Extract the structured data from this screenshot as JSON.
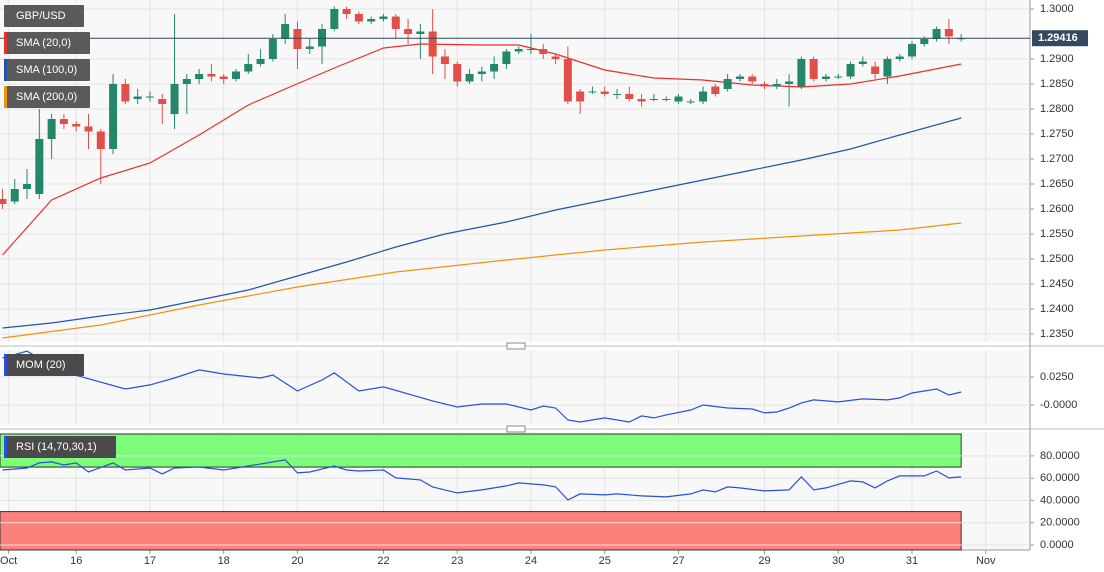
{
  "chart_data": [
    {
      "type": "candlestick",
      "title": "GBP/USD",
      "open": [
        1.262,
        1.2615,
        1.264,
        1.263,
        1.274,
        1.278,
        1.277,
        1.2765,
        1.2755,
        1.272,
        1.285,
        1.282,
        1.2825,
        1.282,
        1.279,
        1.285,
        1.286,
        1.287,
        1.2865,
        1.286,
        1.2875,
        1.289,
        1.29,
        1.294,
        1.296,
        1.292,
        1.2925,
        1.296,
        1.3,
        1.299,
        1.2975,
        1.298,
        1.2985,
        1.296,
        1.295,
        1.2955,
        1.2905,
        1.289,
        1.2855,
        1.287,
        1.2875,
        1.289,
        1.2915,
        1.292,
        1.292,
        1.2905,
        1.29,
        1.2835,
        1.2835,
        1.2835,
        1.283,
        1.283,
        1.282,
        1.282,
        1.282,
        1.2815,
        1.2815,
        1.2815,
        1.2845,
        1.284,
        1.286,
        1.2865,
        1.285,
        1.2845,
        1.285,
        1.2845,
        1.29,
        1.286,
        1.2865,
        1.2865,
        1.289,
        1.2885,
        1.2865,
        1.29,
        1.2905,
        1.293,
        1.294,
        1.296,
        1.294
      ],
      "high": [
        1.264,
        1.266,
        1.268,
        1.28,
        1.279,
        1.279,
        1.2775,
        1.279,
        1.276,
        1.287,
        1.286,
        1.284,
        1.2835,
        1.283,
        1.299,
        1.287,
        1.288,
        1.289,
        1.287,
        1.288,
        1.291,
        1.292,
        1.295,
        1.299,
        1.2975,
        1.294,
        1.297,
        1.3005,
        1.3005,
        1.2995,
        1.2985,
        1.299,
        1.299,
        1.298,
        1.297,
        1.3,
        1.292,
        1.2895,
        1.288,
        1.2885,
        1.2905,
        1.292,
        1.2925,
        1.295,
        1.293,
        1.291,
        1.2925,
        1.284,
        1.2845,
        1.2845,
        1.284,
        1.2845,
        1.283,
        1.283,
        1.2825,
        1.283,
        1.282,
        1.2845,
        1.285,
        1.287,
        1.287,
        1.287,
        1.2855,
        1.286,
        1.287,
        1.2905,
        1.2905,
        1.287,
        1.287,
        1.2895,
        1.2905,
        1.2895,
        1.2905,
        1.291,
        1.2935,
        1.2945,
        1.2965,
        1.298,
        1.295
      ],
      "low": [
        1.26,
        1.261,
        1.262,
        1.262,
        1.27,
        1.276,
        1.2755,
        1.272,
        1.265,
        1.271,
        1.281,
        1.281,
        1.2815,
        1.277,
        1.276,
        1.279,
        1.285,
        1.2855,
        1.285,
        1.2855,
        1.287,
        1.2885,
        1.2895,
        1.293,
        1.288,
        1.291,
        1.289,
        1.2955,
        1.298,
        1.297,
        1.297,
        1.2975,
        1.294,
        1.293,
        1.29,
        1.287,
        1.286,
        1.2845,
        1.285,
        1.2855,
        1.286,
        1.288,
        1.291,
        1.291,
        1.29,
        1.289,
        1.281,
        1.279,
        1.283,
        1.2825,
        1.282,
        1.2815,
        1.2805,
        1.2815,
        1.2815,
        1.281,
        1.281,
        1.281,
        1.2825,
        1.2835,
        1.2855,
        1.285,
        1.284,
        1.284,
        1.2805,
        1.284,
        1.2855,
        1.2855,
        1.286,
        1.286,
        1.2885,
        1.286,
        1.285,
        1.2895,
        1.29,
        1.2925,
        1.2935,
        1.293,
        1.2935
      ],
      "close": [
        1.261,
        1.264,
        1.265,
        1.274,
        1.278,
        1.277,
        1.2765,
        1.2755,
        1.272,
        1.285,
        1.2815,
        1.2825,
        1.2825,
        1.281,
        1.285,
        1.286,
        1.287,
        1.2865,
        1.286,
        1.2875,
        1.289,
        1.29,
        1.294,
        1.297,
        1.292,
        1.2925,
        1.296,
        1.3,
        1.299,
        1.2975,
        1.298,
        1.2985,
        1.296,
        1.295,
        1.2955,
        1.2905,
        1.289,
        1.2855,
        1.287,
        1.2875,
        1.289,
        1.2915,
        1.292,
        1.292,
        1.291,
        1.29,
        1.2815,
        1.2815,
        1.2835,
        1.283,
        1.283,
        1.282,
        1.2815,
        1.282,
        1.282,
        1.2825,
        1.2815,
        1.2835,
        1.283,
        1.286,
        1.2865,
        1.2855,
        1.2845,
        1.285,
        1.2855,
        1.29,
        1.286,
        1.2865,
        1.2865,
        1.289,
        1.2895,
        1.287,
        1.29,
        1.2905,
        1.293,
        1.294,
        1.296,
        1.2945,
        1.29416
      ],
      "up_color": "#25876a",
      "down_color": "#e04f48",
      "last_price": 1.29416,
      "series": [
        {
          "name": "SMA (20,0)",
          "color": "#e8302a",
          "x": [
            0,
            4,
            8,
            12,
            16,
            20,
            23,
            27,
            31,
            34,
            39,
            42,
            45,
            49,
            53,
            57,
            61,
            65,
            69,
            73,
            78
          ],
          "values": [
            1.2508,
            1.2618,
            1.2662,
            1.2692,
            1.2748,
            1.2808,
            1.284,
            1.2882,
            1.2922,
            1.293,
            1.2928,
            1.2928,
            1.291,
            1.2878,
            1.2862,
            1.2858,
            1.2848,
            1.2844,
            1.285,
            1.2866,
            1.289
          ]
        },
        {
          "name": "SMA (100,0)",
          "color": "#2255aa",
          "x": [
            0,
            4,
            8,
            12,
            16,
            20,
            24,
            28,
            32,
            36,
            41,
            45,
            49,
            53,
            57,
            61,
            65,
            69,
            73,
            78
          ],
          "values": [
            1.2362,
            1.2372,
            1.2386,
            1.2398,
            1.2418,
            1.2438,
            1.2466,
            1.2494,
            1.2524,
            1.255,
            1.2574,
            1.2598,
            1.2618,
            1.2638,
            1.2658,
            1.2678,
            1.2698,
            1.272,
            1.2748,
            1.2782
          ]
        },
        {
          "name": "SMA (200,0)",
          "color": "#f0930f",
          "x": [
            0,
            8,
            16,
            24,
            32,
            41,
            49,
            57,
            65,
            73,
            78
          ],
          "values": [
            1.2342,
            1.2368,
            1.2408,
            1.2444,
            1.2474,
            1.2498,
            1.2518,
            1.2534,
            1.2546,
            1.2558,
            1.2572
          ]
        }
      ],
      "xlim": [
        -0.2,
        83.6
      ],
      "xticks": [
        {
          "value": 0.5,
          "label": "Oct"
        },
        {
          "value": 6,
          "label": "16"
        },
        {
          "value": 12,
          "label": "17"
        },
        {
          "value": 18,
          "label": "18"
        },
        {
          "value": 24,
          "label": "20"
        },
        {
          "value": 31,
          "label": "22"
        },
        {
          "value": 37,
          "label": "23"
        },
        {
          "value": 43,
          "label": "24"
        },
        {
          "value": 49,
          "label": "25"
        },
        {
          "value": 55,
          "label": "27"
        },
        {
          "value": 62,
          "label": "29"
        },
        {
          "value": 68,
          "label": "30"
        },
        {
          "value": 74,
          "label": "31"
        },
        {
          "value": 80,
          "label": "Nov"
        }
      ],
      "ylim": [
        1.2334,
        1.3018
      ],
      "yticks": [
        {
          "value": 1.3,
          "label": "1.3000"
        },
        {
          "value": 1.29,
          "label": "1.2900"
        },
        {
          "value": 1.285,
          "label": "1.2850"
        },
        {
          "value": 1.28,
          "label": "1.2800"
        },
        {
          "value": 1.275,
          "label": "1.2750"
        },
        {
          "value": 1.27,
          "label": "1.2700"
        },
        {
          "value": 1.265,
          "label": "1.2650"
        },
        {
          "value": 1.26,
          "label": "1.2600"
        },
        {
          "value": 1.255,
          "label": "1.2550"
        },
        {
          "value": 1.25,
          "label": "1.2500"
        },
        {
          "value": 1.245,
          "label": "1.2450"
        },
        {
          "value": 1.24,
          "label": "1.2400"
        },
        {
          "value": 1.235,
          "label": "1.2350"
        }
      ],
      "grid": true
    },
    {
      "type": "line",
      "title": "MOM (20)",
      "color": "#2b4fd8",
      "x": [
        0,
        2,
        5,
        10,
        12,
        14,
        16,
        18,
        21,
        22,
        24,
        26,
        27,
        29,
        31,
        35,
        37,
        39,
        41,
        43,
        44,
        45,
        46,
        47,
        49,
        51,
        52,
        53,
        54,
        56,
        57,
        59,
        61,
        62,
        63,
        64,
        65,
        66,
        68,
        70,
        72,
        73,
        74,
        76,
        77,
        78
      ],
      "values": [
        0.042,
        0.048,
        0.0295,
        0.0143,
        0.0179,
        0.0241,
        0.0313,
        0.0277,
        0.0241,
        0.0268,
        0.0125,
        0.0223,
        0.0286,
        0.0125,
        0.0161,
        0.0036,
        -0.0018,
        0.0009,
        0.0009,
        -0.0045,
        -0.0009,
        -0.0027,
        -0.0134,
        -0.0152,
        -0.0116,
        -0.0152,
        -0.0098,
        -0.0116,
        -0.0089,
        -0.0045,
        0.0,
        -0.0027,
        -0.0036,
        -0.0071,
        -0.0063,
        -0.0027,
        0.0018,
        0.0045,
        0.0027,
        0.0054,
        0.0045,
        0.0063,
        0.0107,
        0.0143,
        0.0089,
        0.0116
      ],
      "ylim": [
        -0.0179,
        0.0491
      ],
      "yticks": [
        {
          "value": 0.025,
          "label": "0.0250"
        },
        {
          "value": 0,
          "label": "-0.0000"
        }
      ],
      "grid": true
    },
    {
      "type": "line",
      "title": "RSI (14,70,30,1)",
      "color": "#2b4fd8",
      "overbought": 70,
      "oversold": 30,
      "overbought_color": "#7dfc7a",
      "oversold_color": "#fd807c",
      "x": [
        0,
        2,
        3,
        4,
        5,
        6,
        7,
        9,
        10,
        12,
        13,
        14,
        16,
        18,
        20,
        23,
        24,
        25,
        27,
        28,
        29,
        31,
        32,
        34,
        35,
        37,
        39,
        41,
        42,
        44,
        45,
        46,
        47,
        49,
        50,
        52,
        54,
        56,
        57,
        58,
        59,
        60,
        62,
        64,
        65,
        66,
        67,
        69,
        70,
        71,
        72,
        73,
        75,
        76,
        77,
        78
      ],
      "values": [
        67.4,
        69.2,
        73.7,
        74.6,
        71.9,
        73.7,
        65.6,
        73.7,
        67.4,
        69.2,
        63.9,
        69.2,
        70.1,
        67.4,
        71.0,
        76.4,
        64.8,
        65.6,
        71.0,
        67.4,
        66.5,
        67.4,
        60.3,
        58.5,
        52.2,
        46.8,
        49.5,
        53.1,
        55.8,
        54.0,
        52.2,
        40.5,
        45.9,
        45.0,
        45.9,
        44.1,
        43.2,
        45.9,
        49.5,
        47.7,
        52.2,
        51.3,
        48.6,
        49.5,
        61.2,
        49.5,
        51.3,
        57.6,
        56.7,
        51.3,
        57.6,
        62.1,
        62.1,
        66.5,
        60.3,
        61.2
      ],
      "ylim": [
        -4.5,
        101.5
      ],
      "yticks": [
        {
          "value": 80,
          "label": "80.0000"
        },
        {
          "value": 60,
          "label": "60.0000"
        },
        {
          "value": 40,
          "label": "40.0000"
        },
        {
          "value": 20,
          "label": "20.0000"
        },
        {
          "value": 0,
          "label": "0.0000"
        }
      ],
      "grid": true
    }
  ]
}
